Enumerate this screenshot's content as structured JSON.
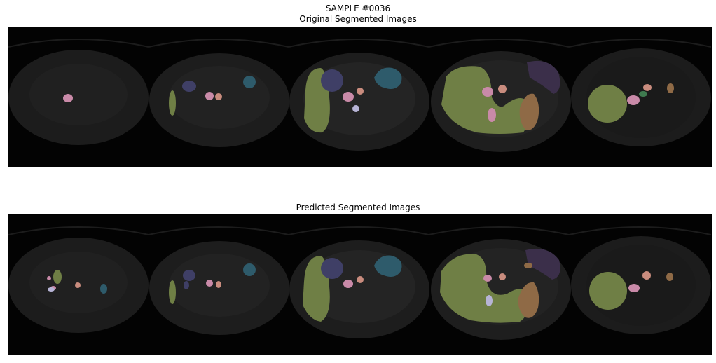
{
  "figure": {
    "sample_title": "SAMPLE #0036",
    "original_title": "Original Segmented Images",
    "predicted_title": "Predicted Segmented Images"
  },
  "colors": {
    "background": "#030303",
    "body": "#1e1e1e",
    "liver": "#6f7f45",
    "spleen": "#2e5b6b",
    "kidney": "#3f3f66",
    "aorta": "#c98aa8",
    "ivc": "#c98c7e",
    "stomach": "#3b2f4a",
    "gallbladder": "#8f6a46",
    "portal_vein": "#b7b4d6",
    "pancreas": "#3f7a4f"
  }
}
